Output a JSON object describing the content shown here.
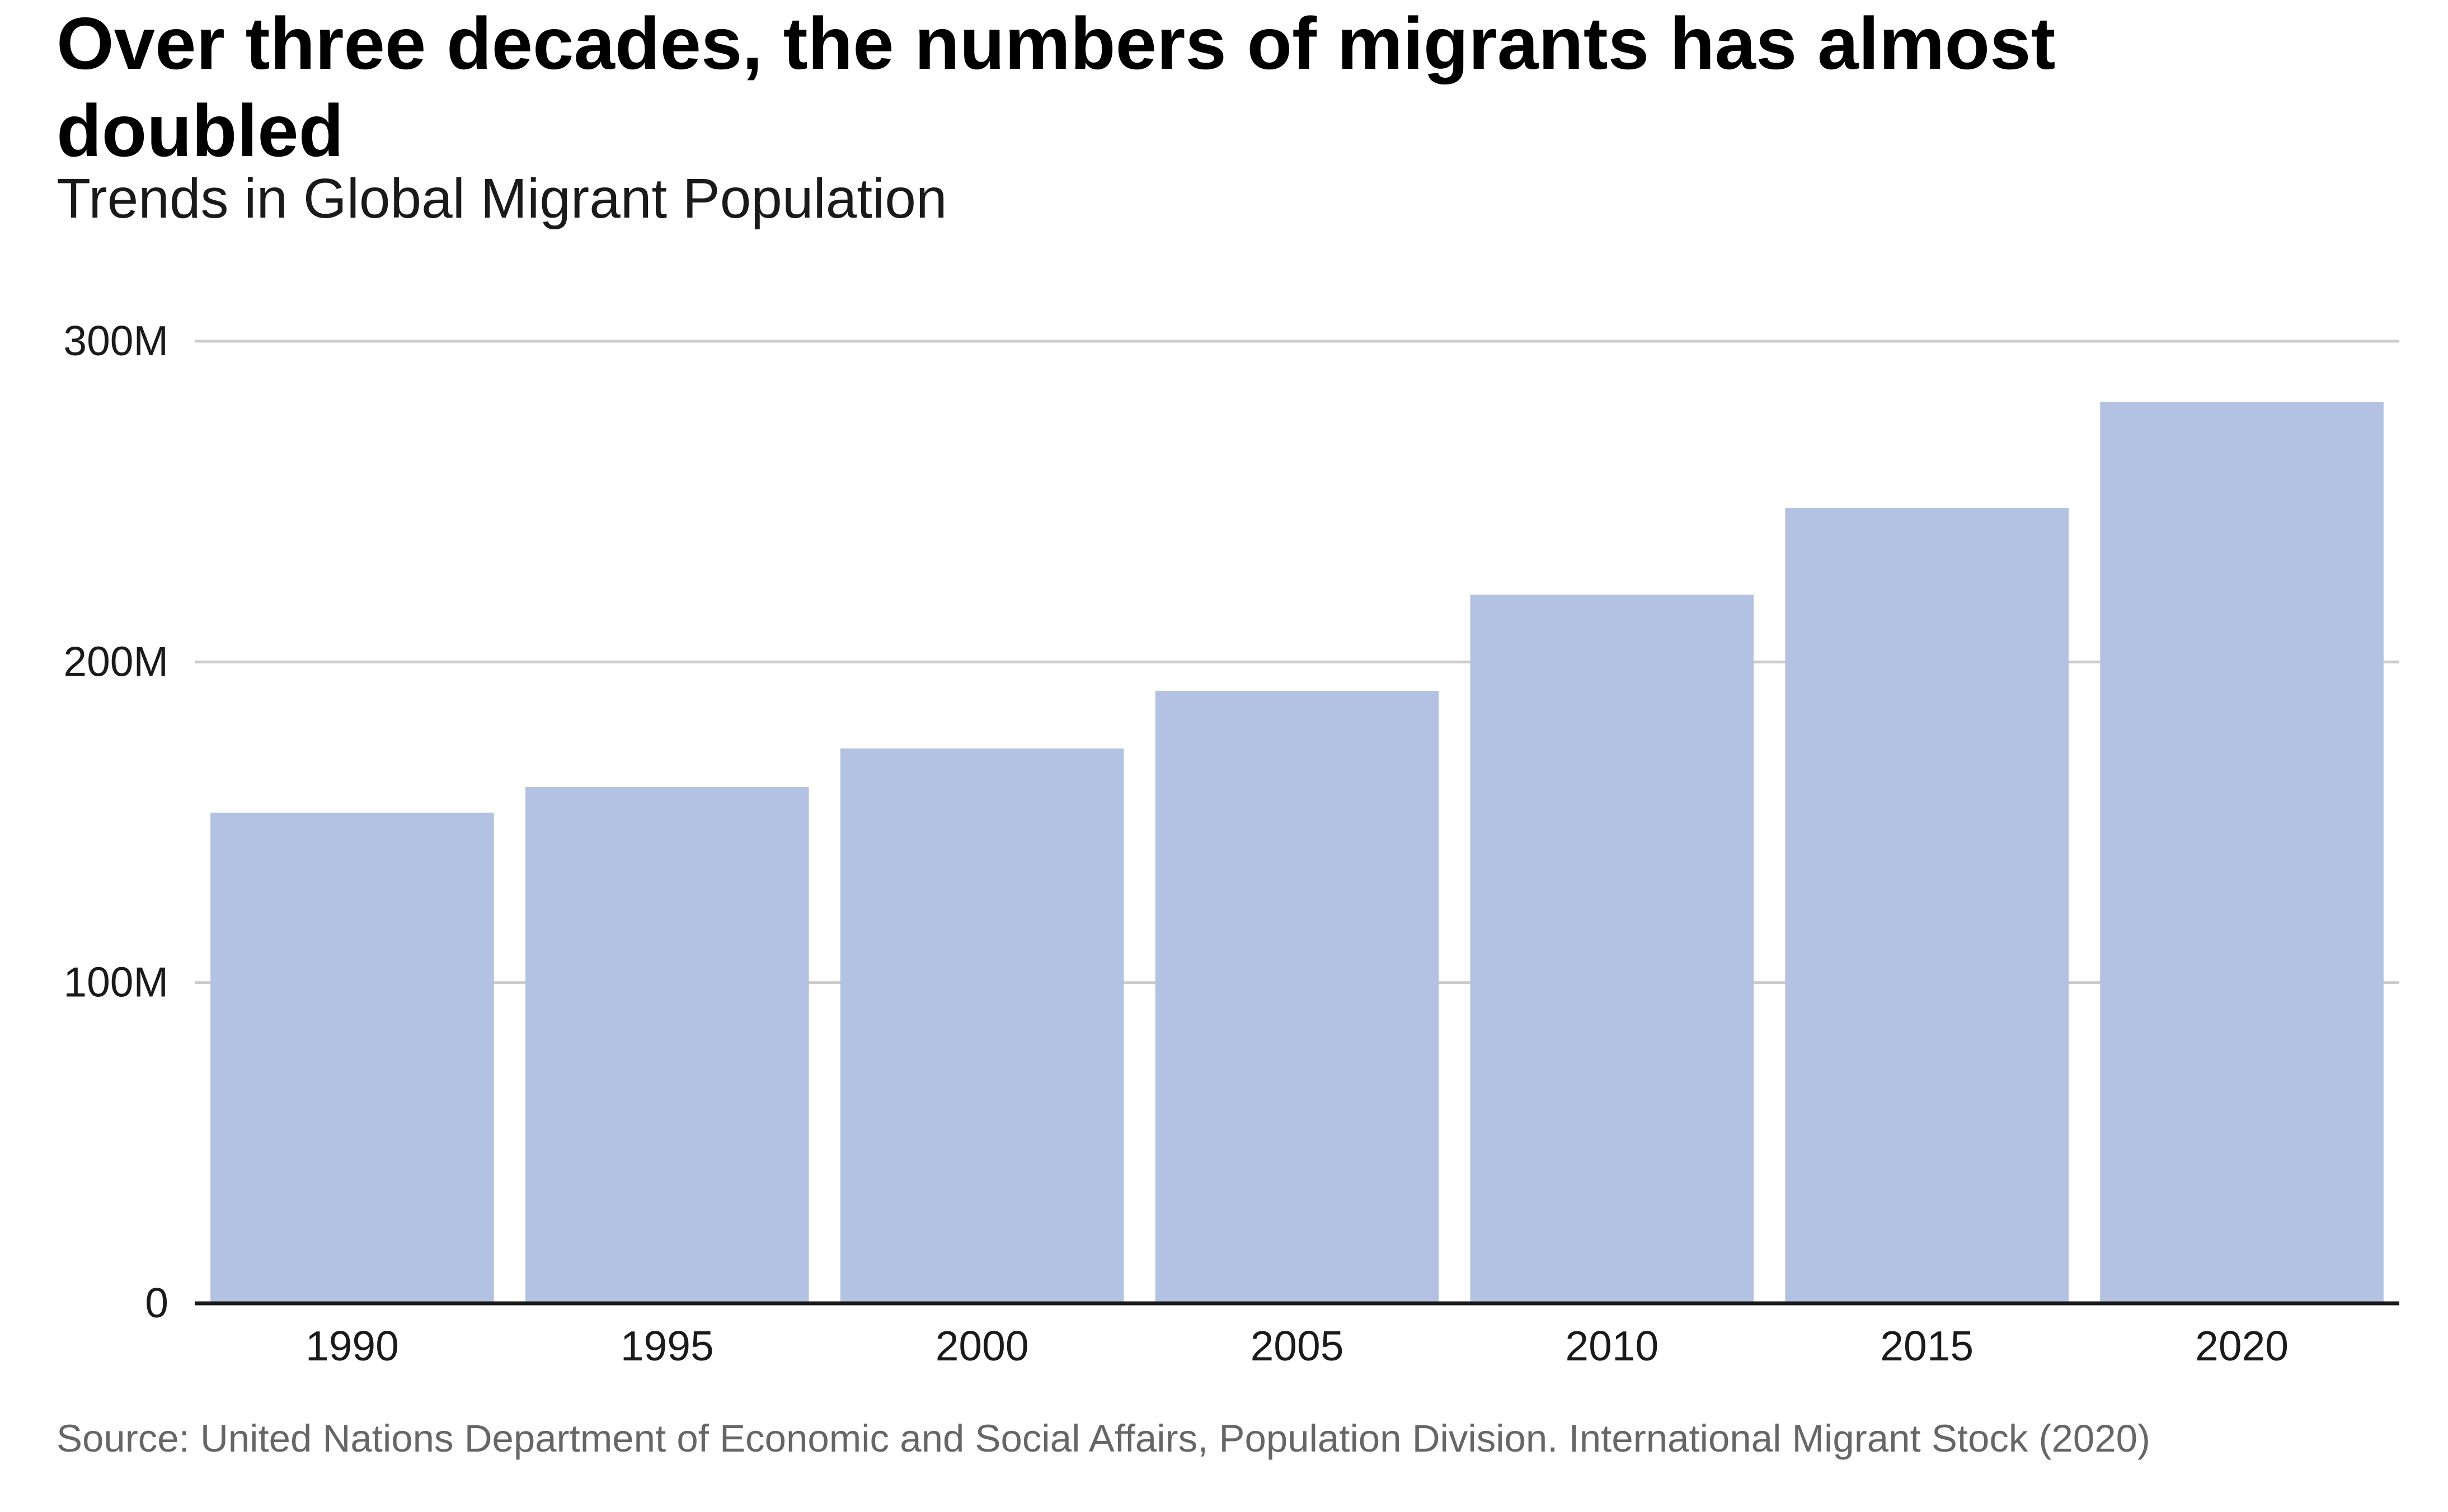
{
  "chart_data": {
    "type": "bar",
    "title": "Over three decades, the numbers of migrants has almost doubled",
    "subtitle": "Trends in Global Migrant Population",
    "categories": [
      "1990",
      "1995",
      "2000",
      "2005",
      "2010",
      "2015",
      "2020"
    ],
    "values": [
      153000000,
      161000000,
      173000000,
      191000000,
      221000000,
      248000000,
      281000000
    ],
    "ylim": [
      0,
      300000000
    ],
    "yticks": [
      {
        "value": 0,
        "label": "0"
      },
      {
        "value": 100000000,
        "label": "100M"
      },
      {
        "value": 200000000,
        "label": "200M"
      },
      {
        "value": 300000000,
        "label": "300M"
      }
    ],
    "grid": true,
    "xlabel": "",
    "ylabel": "",
    "bar_color": "#b3c1e2",
    "source": "Source: United Nations Department of Economic and Social Affairs, Population Division. International Migrant Stock (2020)"
  }
}
